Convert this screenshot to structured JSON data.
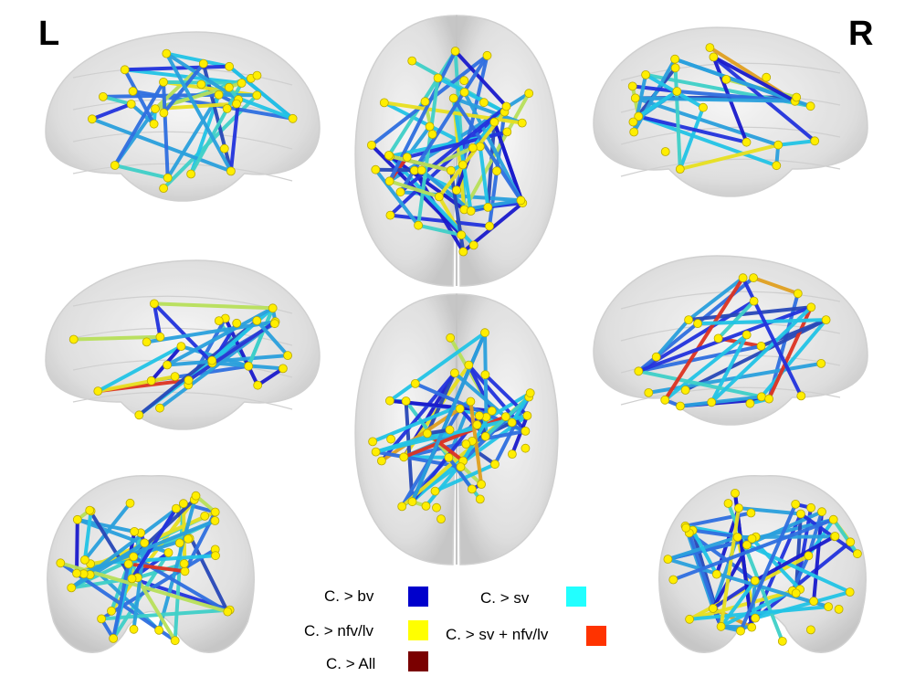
{
  "labels": {
    "left": "L",
    "right": "R"
  },
  "legend": [
    {
      "label": "C. > bv",
      "color": "#0000cc"
    },
    {
      "label": "C. > sv",
      "color": "#22ffff"
    },
    {
      "label": "C. > nfv/lv",
      "color": "#ffff00"
    },
    {
      "label": "C. > sv + nfv/lv",
      "color": "#ff3300"
    },
    {
      "label": "C. > All",
      "color": "#7a0000"
    }
  ],
  "edge_palette": [
    "#1a1acc",
    "#2233dd",
    "#2f6fe0",
    "#2aa0dd",
    "#22c4e6",
    "#3fd0c8",
    "#b8e05a",
    "#e8e020",
    "#e0a020",
    "#dd3322",
    "#2848b8"
  ],
  "node_color": "#ffee00",
  "brain_color": "#d9d9d9"
}
